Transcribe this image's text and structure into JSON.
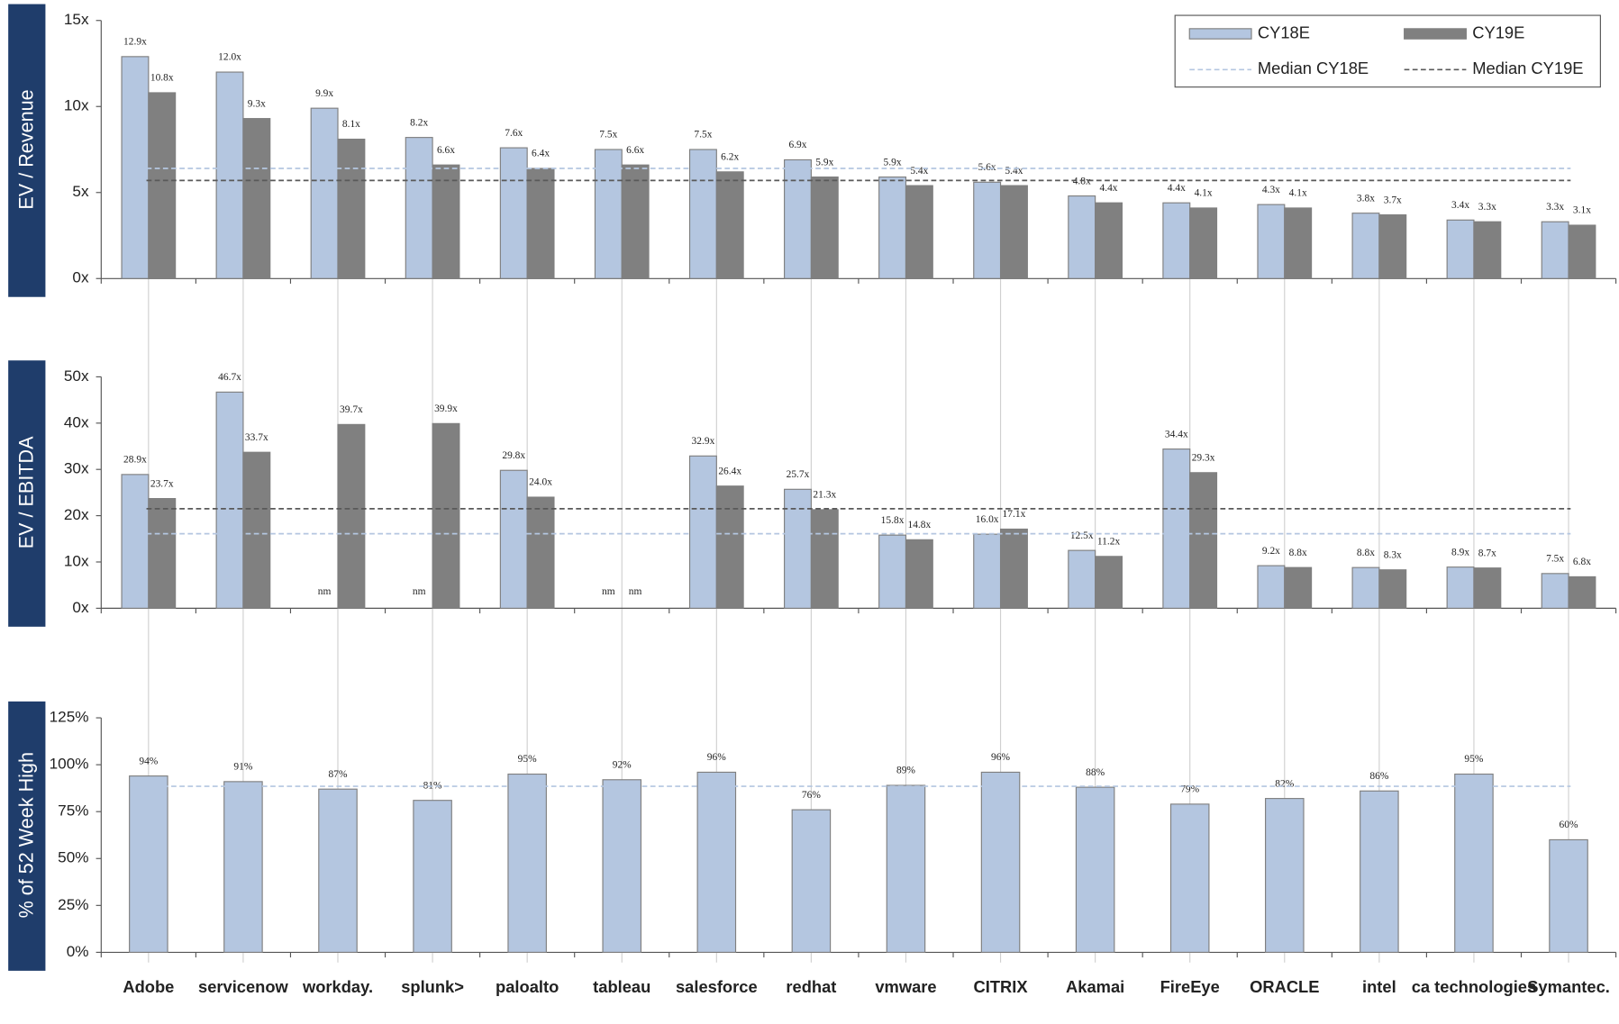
{
  "chart_data": [
    {
      "type": "bar",
      "y_label": "EV / Revenue",
      "series": [
        {
          "name": "CY18E",
          "color": "#b4c6e0",
          "values": [
            12.9,
            12.0,
            9.9,
            8.2,
            7.6,
            7.5,
            7.5,
            6.9,
            5.9,
            5.6,
            4.8,
            4.4,
            4.3,
            3.8,
            3.4,
            3.3
          ],
          "value_labels": [
            "12.9x",
            "12.0x",
            "9.9x",
            "8.2x",
            "7.6x",
            "7.5x",
            "7.5x",
            "6.9x",
            "5.9x",
            "5.6x",
            "4.8x",
            "4.4x",
            "4.3x",
            "3.8x",
            "3.4x",
            "3.3x"
          ]
        },
        {
          "name": "CY19E",
          "color": "#808080",
          "values": [
            10.8,
            9.3,
            8.1,
            6.6,
            6.4,
            6.6,
            6.2,
            5.9,
            5.4,
            5.4,
            4.4,
            4.1,
            4.1,
            3.7,
            3.3,
            3.1
          ],
          "value_labels": [
            "10.8x",
            "9.3x",
            "8.1x",
            "6.6x",
            "6.4x",
            "6.6x",
            "6.2x",
            "5.9x",
            "5.4x",
            "5.4x",
            "4.4x",
            "4.1x",
            "4.1x",
            "3.7x",
            "3.3x",
            "3.1x"
          ]
        }
      ],
      "median_lines": [
        {
          "name": "Median CY18E",
          "value": 6.4,
          "color": "#b4c6e0"
        },
        {
          "name": "Median CY19E",
          "value": 5.7,
          "color": "#595959"
        }
      ],
      "ylim": [
        0,
        15
      ],
      "yticks": [
        {
          "value": 0,
          "label": "0x"
        },
        {
          "value": 5,
          "label": "5x"
        },
        {
          "value": 10,
          "label": "10x"
        },
        {
          "value": 15,
          "label": "15x"
        }
      ],
      "legend": "upper right"
    },
    {
      "type": "bar",
      "y_label": "EV / EBITDA",
      "series": [
        {
          "name": "CY18E",
          "color": "#b4c6e0",
          "values": [
            28.9,
            46.7,
            null,
            null,
            29.8,
            null,
            32.9,
            25.7,
            15.8,
            16.0,
            12.5,
            34.4,
            9.2,
            8.8,
            8.9,
            7.5
          ],
          "value_labels": [
            "28.9x",
            "46.7x",
            "nm",
            "nm",
            "29.8x",
            "nm",
            "32.9x",
            "25.7x",
            "15.8x",
            "16.0x",
            "12.5x",
            "34.4x",
            "9.2x",
            "8.8x",
            "8.9x",
            "7.5x"
          ]
        },
        {
          "name": "CY19E",
          "color": "#808080",
          "values": [
            23.7,
            33.7,
            39.7,
            39.9,
            24.0,
            null,
            26.4,
            21.3,
            14.8,
            17.1,
            11.2,
            29.3,
            8.8,
            8.3,
            8.7,
            6.8
          ],
          "value_labels": [
            "23.7x",
            "33.7x",
            "39.7x",
            "39.9x",
            "24.0x",
            "nm",
            "26.4x",
            "21.3x",
            "14.8x",
            "17.1x",
            "11.2x",
            "29.3x",
            "8.8x",
            "8.3x",
            "8.7x",
            "6.8x"
          ]
        }
      ],
      "median_lines": [
        {
          "value": 16.1,
          "color": "#b4c6e0"
        },
        {
          "value": 21.5,
          "color": "#595959"
        }
      ],
      "ylim": [
        0,
        50
      ],
      "yticks": [
        {
          "value": 0,
          "label": "0x"
        },
        {
          "value": 10,
          "label": "10x"
        },
        {
          "value": 20,
          "label": "20x"
        },
        {
          "value": 30,
          "label": "30x"
        },
        {
          "value": 40,
          "label": "40x"
        },
        {
          "value": 50,
          "label": "50x"
        }
      ]
    },
    {
      "type": "bar",
      "y_label": "% of 52 Week High",
      "categories": [
        "Adobe",
        "servicenow",
        "workday.",
        "splunk>",
        "paloalto",
        "tableau",
        "salesforce",
        "redhat",
        "vmware",
        "CITRIX",
        "Akamai",
        "FireEye",
        "ORACLE",
        "intel",
        "ca technologies",
        "Symantec."
      ],
      "series": [
        {
          "color": "#b4c6e0",
          "values": [
            94,
            91,
            87,
            81,
            95,
            92,
            96,
            76,
            89,
            96,
            88,
            79,
            82,
            86,
            95,
            60
          ],
          "value_labels": [
            "94%",
            "91%",
            "87%",
            "81%",
            "95%",
            "92%",
            "96%",
            "76%",
            "89%",
            "96%",
            "88%",
            "79%",
            "82%",
            "86%",
            "95%",
            "60%"
          ]
        }
      ],
      "median_lines": [
        {
          "value": 88.5,
          "color": "#b4c6e0"
        }
      ],
      "ylim": [
        0,
        125
      ],
      "yticks": [
        {
          "value": 0,
          "label": "0%"
        },
        {
          "value": 25,
          "label": "25%"
        },
        {
          "value": 50,
          "label": "50%"
        },
        {
          "value": 75,
          "label": "75%"
        },
        {
          "value": 100,
          "label": "100%"
        },
        {
          "value": 125,
          "label": "125%"
        }
      ]
    }
  ]
}
